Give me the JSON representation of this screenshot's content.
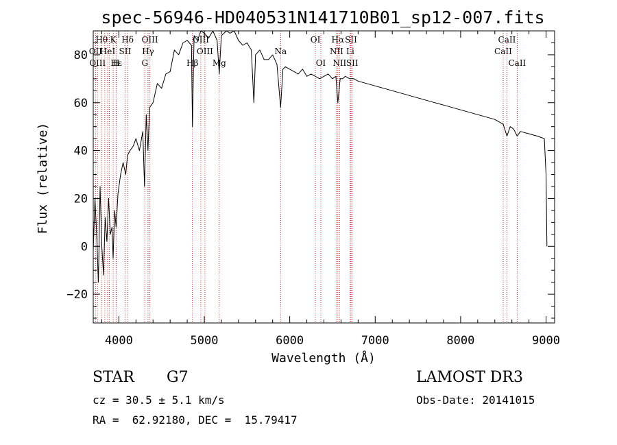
{
  "chart_data": {
    "type": "line",
    "title": "spec-56946-HD040531N141710B01_sp12-007.fits",
    "xlabel": "Wavelength (Å)",
    "ylabel": "Flux (relative)",
    "xlim": [
      3700,
      9100
    ],
    "ylim": [
      -32,
      90
    ],
    "xticks": [
      4000,
      5000,
      6000,
      7000,
      8000,
      9000
    ],
    "yticks": [
      -20,
      0,
      20,
      40,
      60,
      80
    ],
    "grid": false,
    "series": [
      {
        "x": [
          3700,
          3720,
          3740,
          3760,
          3780,
          3800,
          3820,
          3840,
          3860,
          3880,
          3900,
          3920,
          3933,
          3950,
          3968,
          3990,
          4020,
          4050,
          4080,
          4101,
          4130,
          4170,
          4200,
          4240,
          4280,
          4300,
          4320,
          4340,
          4360,
          4400,
          4450,
          4500,
          4550,
          4600,
          4650,
          4700,
          4750,
          4800,
          4850,
          4861,
          4880,
          4920,
          4960,
          5000,
          5050,
          5100,
          5150,
          5175,
          5200,
          5260,
          5300,
          5350,
          5400,
          5450,
          5500,
          5550,
          5580,
          5600,
          5650,
          5700,
          5750,
          5800,
          5850,
          5893,
          5920,
          5950,
          6000,
          6050,
          6100,
          6150,
          6200,
          6250,
          6300,
          6350,
          6400,
          6450,
          6500,
          6540,
          6563,
          6590,
          6620,
          6650,
          6700,
          6750,
          6800,
          6900,
          7000,
          7100,
          7200,
          7300,
          7400,
          7500,
          7600,
          7700,
          7800,
          7900,
          8000,
          8100,
          8200,
          8300,
          8400,
          8498,
          8542,
          8580,
          8620,
          8662,
          8700,
          8800,
          8900,
          8980,
          9000,
          9010
        ],
        "y": [
          -2,
          20,
          5,
          -15,
          25,
          0,
          -12,
          12,
          2,
          20,
          5,
          8,
          -5,
          15,
          8,
          22,
          30,
          35,
          30,
          38,
          40,
          42,
          45,
          40,
          48,
          25,
          55,
          40,
          58,
          60,
          68,
          66,
          72,
          73,
          82,
          80,
          85,
          86,
          84,
          50,
          88,
          86,
          90,
          89,
          87,
          90,
          86,
          72,
          88,
          90,
          89,
          91,
          86,
          84,
          85,
          82,
          60,
          80,
          82,
          78,
          78,
          80,
          76,
          58,
          74,
          75,
          74,
          73,
          72,
          74,
          71,
          72,
          71,
          70,
          71,
          72,
          70,
          71,
          60,
          70,
          70,
          71,
          70,
          70,
          69,
          68,
          67,
          66,
          65,
          64,
          63,
          62,
          61,
          60,
          59,
          58,
          57,
          56,
          55,
          54,
          53,
          51,
          46,
          50,
          49,
          46,
          48,
          47,
          46,
          45,
          30,
          0
        ]
      }
    ],
    "lines": [
      {
        "w": 3727,
        "labels": [
          {
            "t": "OII",
            "r": 1
          }
        ]
      },
      {
        "w": 3750,
        "labels": [
          {
            "t": "OIII",
            "r": 2
          }
        ]
      },
      {
        "w": 3798,
        "labels": [
          {
            "t": "Hθ",
            "r": 0
          }
        ]
      },
      {
        "w": 3835,
        "labels": []
      },
      {
        "w": 3869,
        "labels": [
          {
            "t": "HeI",
            "r": 1
          }
        ]
      },
      {
        "w": 3889,
        "labels": []
      },
      {
        "w": 3934,
        "labels": [
          {
            "t": "K",
            "r": 0
          }
        ]
      },
      {
        "w": 3968,
        "labels": [
          {
            "t": "H",
            "r": 2
          }
        ]
      },
      {
        "w": 3970,
        "labels": [
          {
            "t": "Hε",
            "r": 2
          }
        ]
      },
      {
        "w": 4072,
        "labels": [
          {
            "t": "SII",
            "r": 1
          }
        ]
      },
      {
        "w": 4102,
        "labels": [
          {
            "t": "Hδ",
            "r": 0
          }
        ]
      },
      {
        "w": 4304,
        "labels": [
          {
            "t": "G",
            "r": 2
          }
        ]
      },
      {
        "w": 4341,
        "labels": [
          {
            "t": "Hγ",
            "r": 1
          }
        ]
      },
      {
        "w": 4363,
        "labels": [
          {
            "t": "OIII",
            "r": 0
          }
        ]
      },
      {
        "w": 4861,
        "labels": [
          {
            "t": "Hβ",
            "r": 2
          }
        ]
      },
      {
        "w": 4959,
        "labels": [
          {
            "t": "OIII",
            "r": 0
          }
        ]
      },
      {
        "w": 5007,
        "labels": [
          {
            "t": "OIII",
            "r": 1
          }
        ]
      },
      {
        "w": 5175,
        "labels": [
          {
            "t": "Mg",
            "r": 2
          }
        ]
      },
      {
        "w": 5893,
        "labels": [
          {
            "t": "Na",
            "r": 1
          }
        ]
      },
      {
        "w": 6300,
        "labels": [
          {
            "t": "OI",
            "r": 0
          }
        ]
      },
      {
        "w": 6364,
        "labels": [
          {
            "t": "OI",
            "r": 2
          }
        ]
      },
      {
        "w": 6548,
        "labels": [
          {
            "t": "NII",
            "r": 1
          }
        ]
      },
      {
        "w": 6563,
        "labels": [
          {
            "t": "Hα",
            "r": 0
          }
        ]
      },
      {
        "w": 6583,
        "labels": [
          {
            "t": "NII",
            "r": 2
          }
        ]
      },
      {
        "w": 6708,
        "labels": [
          {
            "t": "Li",
            "r": 1
          }
        ]
      },
      {
        "w": 6717,
        "labels": [
          {
            "t": "SII",
            "r": 0
          }
        ]
      },
      {
        "w": 6731,
        "labels": [
          {
            "t": "SII",
            "r": 2
          }
        ]
      },
      {
        "w": 8498,
        "labels": [
          {
            "t": "CaII",
            "r": 1
          }
        ]
      },
      {
        "w": 8542,
        "labels": [
          {
            "t": "CaII",
            "r": 0
          }
        ]
      },
      {
        "w": 8662,
        "labels": [
          {
            "t": "CaII",
            "r": 2
          }
        ]
      }
    ]
  },
  "info": {
    "class": "STAR",
    "subclass": "G7",
    "survey": "LAMOST DR3",
    "cz": "cz = 30.5 ± 5.1 km/s",
    "obsdate": "Obs-Date: 20141015",
    "radec": "RA =  62.92180, DEC =  15.79417"
  }
}
